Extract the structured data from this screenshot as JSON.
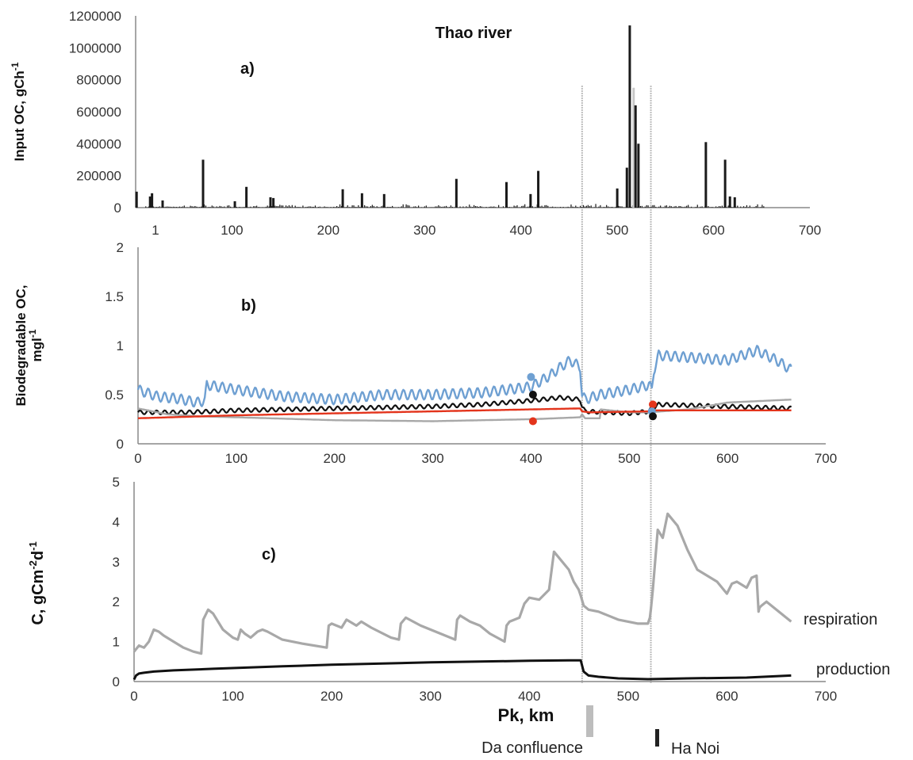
{
  "colors": {
    "axis": "#888888",
    "bar": "#1a1a1a",
    "blue": "#6fa0d2",
    "black": "#111111",
    "grey": "#a8a8a8",
    "red": "#e3341c",
    "marker_line": "#bdbdbd"
  },
  "figure": {
    "title": "Thao river",
    "x_title": "Pk, km",
    "markers": [
      {
        "pk": 452,
        "label": "Da confluence"
      },
      {
        "pk": 522,
        "label": "Ha Noi"
      }
    ]
  },
  "chart_data": [
    {
      "panel": "a)",
      "type": "bar",
      "ylabel": "Input OC, gCh-1",
      "ylabel_main": "Input OC, gCh",
      "ylabel_sup": "-1",
      "ylim": [
        0,
        1200000
      ],
      "yticks": [
        "0",
        "200000",
        "400000",
        "600000",
        "800000",
        "1000000",
        "1200000"
      ],
      "xlim": [
        0,
        700
      ],
      "xticks": [
        "1",
        "100",
        "200",
        "300",
        "400",
        "500",
        "600",
        "700"
      ],
      "grid": false,
      "bars": [
        {
          "x": 1,
          "y": 100000
        },
        {
          "x": 15,
          "y": 70000
        },
        {
          "x": 17,
          "y": 90000
        },
        {
          "x": 28,
          "y": 45000
        },
        {
          "x": 70,
          "y": 300000
        },
        {
          "x": 103,
          "y": 40000
        },
        {
          "x": 115,
          "y": 130000
        },
        {
          "x": 140,
          "y": 65000
        },
        {
          "x": 143,
          "y": 60000
        },
        {
          "x": 215,
          "y": 115000
        },
        {
          "x": 235,
          "y": 90000
        },
        {
          "x": 258,
          "y": 85000
        },
        {
          "x": 333,
          "y": 180000
        },
        {
          "x": 385,
          "y": 160000
        },
        {
          "x": 410,
          "y": 85000
        },
        {
          "x": 418,
          "y": 230000
        },
        {
          "x": 500,
          "y": 120000
        },
        {
          "x": 510,
          "y": 250000
        },
        {
          "x": 513,
          "y": 1140000
        },
        {
          "x": 517,
          "y": 750000
        },
        {
          "x": 519,
          "y": 640000
        },
        {
          "x": 522,
          "y": 400000
        },
        {
          "x": 592,
          "y": 410000
        },
        {
          "x": 612,
          "y": 300000
        },
        {
          "x": 617,
          "y": 70000
        },
        {
          "x": 622,
          "y": 65000
        }
      ],
      "small_bar_range": [
        10,
        652
      ]
    },
    {
      "panel": "b)",
      "type": "line",
      "ylabel": "Biodegradable OC, mgl-1",
      "ylabel_main": "Biodegradable OC,",
      "ylabel_main2": "mgl",
      "ylabel_sup": "-1",
      "ylim": [
        0,
        2
      ],
      "yticks": [
        "0",
        "0.5",
        "1",
        "1.5",
        "2"
      ],
      "xlim": [
        0,
        700
      ],
      "xticks": [
        "0",
        "100",
        "200",
        "300",
        "400",
        "500",
        "600",
        "700"
      ],
      "grid": false,
      "series": [
        {
          "color": "blue",
          "x": [
            0,
            20,
            40,
            60,
            68,
            70,
            100,
            150,
            200,
            250,
            300,
            350,
            400,
            420,
            430,
            440,
            450,
            452,
            455,
            470,
            500,
            520,
            523,
            525,
            530,
            560,
            600,
            630,
            650,
            665
          ],
          "y": [
            0.55,
            0.48,
            0.46,
            0.42,
            0.44,
            0.6,
            0.55,
            0.48,
            0.45,
            0.5,
            0.5,
            0.52,
            0.58,
            0.7,
            0.78,
            0.85,
            0.78,
            0.5,
            0.45,
            0.5,
            0.55,
            0.6,
            0.55,
            0.75,
            0.9,
            0.88,
            0.85,
            0.95,
            0.85,
            0.75
          ],
          "amp": 0.05
        },
        {
          "color": "black",
          "x": [
            0,
            50,
            100,
            200,
            300,
            350,
            400,
            430,
            450,
            452,
            455,
            500,
            520,
            523,
            530,
            600,
            665
          ],
          "y": [
            0.32,
            0.32,
            0.34,
            0.36,
            0.38,
            0.4,
            0.44,
            0.47,
            0.45,
            0.38,
            0.33,
            0.31,
            0.33,
            0.36,
            0.4,
            0.38,
            0.36
          ],
          "amp": 0.02
        },
        {
          "color": "grey",
          "x": [
            0,
            30,
            60,
            100,
            200,
            300,
            400,
            450,
            452,
            455,
            470,
            471,
            500,
            520,
            560,
            600,
            665
          ],
          "y": [
            0.36,
            0.3,
            0.28,
            0.27,
            0.24,
            0.23,
            0.25,
            0.27,
            0.3,
            0.26,
            0.26,
            0.35,
            0.32,
            0.32,
            0.35,
            0.42,
            0.45
          ],
          "amp": 0.0
        },
        {
          "color": "red",
          "x": [
            0,
            100,
            200,
            300,
            400,
            450,
            452,
            460,
            520,
            525,
            600,
            665
          ],
          "y": [
            0.26,
            0.29,
            0.31,
            0.33,
            0.35,
            0.36,
            0.33,
            0.32,
            0.33,
            0.34,
            0.34,
            0.34
          ],
          "amp": 0.0
        }
      ],
      "points": [
        {
          "color": "blue",
          "x": 400,
          "y": 0.68
        },
        {
          "color": "black",
          "x": 402,
          "y": 0.5
        },
        {
          "color": "red",
          "x": 402,
          "y": 0.23
        },
        {
          "color": "red",
          "x": 524,
          "y": 0.4
        },
        {
          "color": "blue",
          "x": 523,
          "y": 0.33
        },
        {
          "color": "black",
          "x": 524,
          "y": 0.28
        }
      ]
    },
    {
      "panel": "c)",
      "type": "line",
      "ylabel": "C, gCm-2d-1",
      "ylabel_main": "C, gCm",
      "ylabel_sup1": "-2",
      "ylabel_mid": "d",
      "ylabel_sup2": "-1",
      "ylim": [
        0,
        5
      ],
      "yticks": [
        "0",
        "1",
        "2",
        "3",
        "4",
        "5"
      ],
      "xlim": [
        0,
        700
      ],
      "xticks": [
        "0",
        "100",
        "200",
        "300",
        "400",
        "500",
        "600",
        "700"
      ],
      "grid": false,
      "series": [
        {
          "name": "respiration",
          "color": "grey",
          "x": [
            0,
            5,
            10,
            15,
            20,
            25,
            30,
            40,
            50,
            60,
            68,
            70,
            75,
            80,
            90,
            100,
            105,
            108,
            112,
            118,
            125,
            130,
            135,
            150,
            170,
            195,
            197,
            200,
            210,
            215,
            225,
            230,
            240,
            260,
            268,
            270,
            275,
            290,
            310,
            325,
            327,
            330,
            340,
            350,
            360,
            375,
            377,
            380,
            390,
            395,
            400,
            410,
            420,
            425,
            430,
            440,
            445,
            450,
            452,
            455,
            460,
            470,
            480,
            490,
            500,
            510,
            520,
            522,
            523,
            525,
            530,
            535,
            540,
            550,
            560,
            570,
            590,
            600,
            605,
            610,
            620,
            625,
            630,
            632,
            633,
            635,
            640,
            650,
            665
          ],
          "y": [
            0.75,
            0.9,
            0.85,
            1.0,
            1.3,
            1.25,
            1.15,
            1.0,
            0.85,
            0.75,
            0.7,
            1.55,
            1.8,
            1.7,
            1.3,
            1.1,
            1.05,
            1.3,
            1.2,
            1.1,
            1.25,
            1.3,
            1.25,
            1.05,
            0.95,
            0.85,
            1.4,
            1.45,
            1.35,
            1.55,
            1.4,
            1.5,
            1.35,
            1.1,
            1.05,
            1.45,
            1.6,
            1.4,
            1.2,
            1.05,
            1.55,
            1.65,
            1.5,
            1.4,
            1.2,
            1.0,
            1.4,
            1.5,
            1.6,
            1.95,
            2.1,
            2.05,
            2.3,
            3.25,
            3.1,
            2.8,
            2.5,
            2.3,
            2.15,
            1.9,
            1.8,
            1.75,
            1.65,
            1.55,
            1.5,
            1.45,
            1.45,
            1.6,
            1.8,
            2.3,
            3.8,
            3.6,
            4.2,
            3.9,
            3.3,
            2.8,
            2.5,
            2.2,
            2.45,
            2.5,
            2.35,
            2.6,
            2.65,
            1.75,
            1.85,
            1.9,
            2.0,
            1.8,
            1.5
          ]
        },
        {
          "name": "production",
          "color": "black",
          "x": [
            0,
            2,
            5,
            10,
            20,
            40,
            80,
            150,
            200,
            300,
            400,
            440,
            452,
            455,
            460,
            470,
            490,
            520,
            560,
            620,
            665
          ],
          "y": [
            0.05,
            0.15,
            0.2,
            0.22,
            0.25,
            0.28,
            0.32,
            0.38,
            0.42,
            0.48,
            0.52,
            0.53,
            0.53,
            0.25,
            0.15,
            0.12,
            0.08,
            0.06,
            0.08,
            0.1,
            0.15
          ]
        }
      ]
    }
  ]
}
